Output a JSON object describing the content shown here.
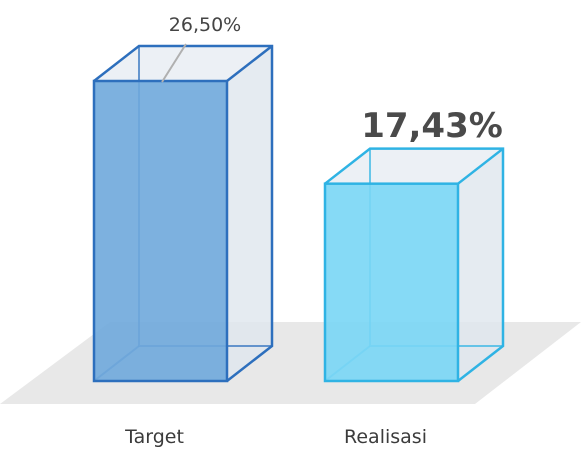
{
  "chart_data": {
    "type": "bar",
    "categories": [
      "Target",
      "Realisasi"
    ],
    "values": [
      26.5,
      17.43
    ],
    "value_labels": [
      "26,50%",
      "17,43%"
    ],
    "ylim": [
      0,
      26.5
    ],
    "grid": false,
    "colors": {
      "target_front": "#6fa9dc",
      "target_stroke": "#2d6fbd",
      "realisasi_front": "#79d6f5",
      "realisasi_stroke": "#2fb3e4",
      "glass_side": "#dfe6ee",
      "floor": "#e8e8e8"
    }
  }
}
